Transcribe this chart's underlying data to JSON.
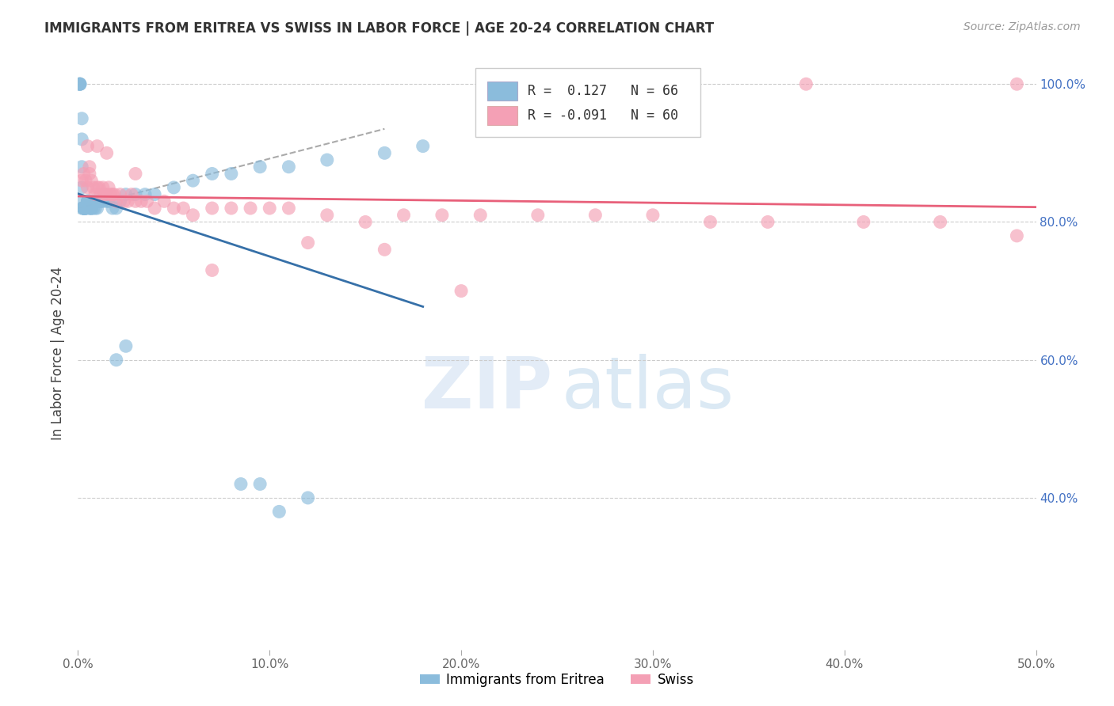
{
  "title": "IMMIGRANTS FROM ERITREA VS SWISS IN LABOR FORCE | AGE 20-24 CORRELATION CHART",
  "source": "Source: ZipAtlas.com",
  "ylabel": "In Labor Force | Age 20-24",
  "xlim": [
    0.0,
    0.5
  ],
  "ylim": [
    0.18,
    1.04
  ],
  "xticks": [
    0.0,
    0.1,
    0.2,
    0.3,
    0.4,
    0.5
  ],
  "xticklabels": [
    "0.0%",
    "10.0%",
    "20.0%",
    "30.0%",
    "40.0%",
    "50.0%"
  ],
  "yticks": [
    0.4,
    0.6,
    0.8,
    1.0
  ],
  "yticklabels": [
    "40.0%",
    "60.0%",
    "80.0%",
    "100.0%"
  ],
  "blue_color": "#8bbcdc",
  "pink_color": "#f4a0b5",
  "blue_line_color": "#3670a8",
  "pink_line_color": "#e8607a",
  "legend_label1": "Immigrants from Eritrea",
  "legend_label2": "Swiss",
  "blue_R": 0.127,
  "blue_N": 66,
  "pink_R": -0.091,
  "pink_N": 60,
  "blue_x": [
    0.001,
    0.001,
    0.001,
    0.001,
    0.002,
    0.002,
    0.002,
    0.002,
    0.002,
    0.002,
    0.003,
    0.003,
    0.003,
    0.003,
    0.003,
    0.003,
    0.003,
    0.004,
    0.004,
    0.004,
    0.004,
    0.004,
    0.005,
    0.005,
    0.005,
    0.005,
    0.006,
    0.006,
    0.006,
    0.006,
    0.007,
    0.007,
    0.007,
    0.008,
    0.008,
    0.009,
    0.009,
    0.01,
    0.01,
    0.011,
    0.012,
    0.013,
    0.015,
    0.016,
    0.018,
    0.02,
    0.022,
    0.025,
    0.03,
    0.035,
    0.04,
    0.05,
    0.06,
    0.07,
    0.08,
    0.095,
    0.11,
    0.13,
    0.16,
    0.18,
    0.02,
    0.025,
    0.085,
    0.095,
    0.105,
    0.12
  ],
  "blue_y": [
    1.0,
    1.0,
    1.0,
    1.0,
    0.95,
    0.92,
    0.88,
    0.85,
    0.83,
    0.82,
    0.82,
    0.82,
    0.82,
    0.82,
    0.82,
    0.82,
    0.82,
    0.82,
    0.82,
    0.82,
    0.82,
    0.82,
    0.83,
    0.83,
    0.83,
    0.83,
    0.83,
    0.83,
    0.82,
    0.82,
    0.82,
    0.82,
    0.82,
    0.83,
    0.82,
    0.83,
    0.82,
    0.83,
    0.82,
    0.83,
    0.83,
    0.83,
    0.83,
    0.83,
    0.82,
    0.82,
    0.83,
    0.84,
    0.84,
    0.84,
    0.84,
    0.85,
    0.86,
    0.87,
    0.87,
    0.88,
    0.88,
    0.89,
    0.9,
    0.91,
    0.6,
    0.62,
    0.42,
    0.42,
    0.38,
    0.4
  ],
  "pink_x": [
    0.002,
    0.003,
    0.004,
    0.005,
    0.006,
    0.006,
    0.007,
    0.008,
    0.009,
    0.01,
    0.011,
    0.012,
    0.013,
    0.014,
    0.015,
    0.016,
    0.017,
    0.018,
    0.019,
    0.02,
    0.022,
    0.024,
    0.026,
    0.028,
    0.03,
    0.033,
    0.036,
    0.04,
    0.045,
    0.05,
    0.055,
    0.06,
    0.07,
    0.08,
    0.09,
    0.1,
    0.11,
    0.13,
    0.15,
    0.17,
    0.19,
    0.21,
    0.24,
    0.27,
    0.3,
    0.33,
    0.36,
    0.41,
    0.45,
    0.49,
    0.005,
    0.01,
    0.015,
    0.03,
    0.07,
    0.12,
    0.16,
    0.2,
    0.38,
    0.49
  ],
  "pink_y": [
    0.86,
    0.87,
    0.86,
    0.85,
    0.87,
    0.88,
    0.86,
    0.85,
    0.84,
    0.85,
    0.85,
    0.84,
    0.85,
    0.84,
    0.84,
    0.85,
    0.84,
    0.84,
    0.84,
    0.83,
    0.84,
    0.83,
    0.83,
    0.84,
    0.83,
    0.83,
    0.83,
    0.82,
    0.83,
    0.82,
    0.82,
    0.81,
    0.82,
    0.82,
    0.82,
    0.82,
    0.82,
    0.81,
    0.8,
    0.81,
    0.81,
    0.81,
    0.81,
    0.81,
    0.81,
    0.8,
    0.8,
    0.8,
    0.8,
    0.78,
    0.91,
    0.91,
    0.9,
    0.87,
    0.73,
    0.77,
    0.76,
    0.7,
    1.0,
    1.0
  ]
}
